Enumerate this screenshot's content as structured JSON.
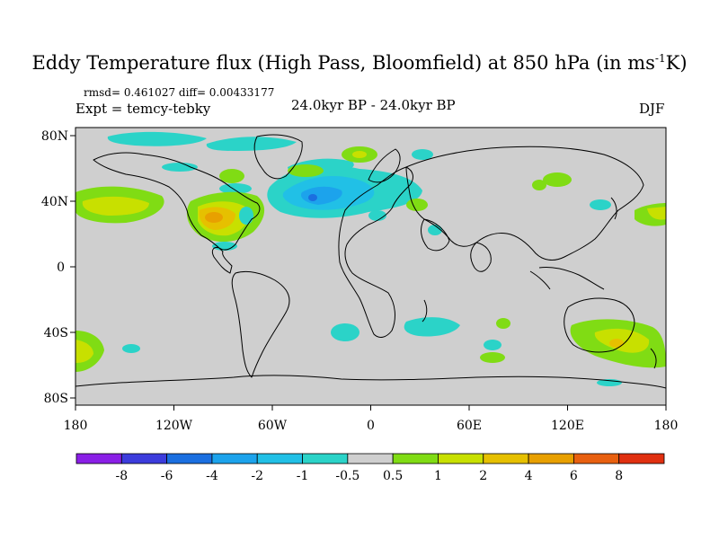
{
  "header": {
    "title": "Eddy Temperature flux (High Pass, Bloomfield) at 850 hPa (in ms",
    "title_sup": "-1",
    "title_tail": "K)",
    "stats": "rmsd= 0.461027 diff= 0.00433177",
    "expt": "Expt = temcy-tebky",
    "period": "24.0kyr BP - 24.0kyr BP",
    "season": "DJF"
  },
  "axes": {
    "lon_ticks": [
      "180",
      "120W",
      "60W",
      "0",
      "60E",
      "120E",
      "180"
    ],
    "lat_ticks": [
      "80N",
      "40N",
      "0",
      "40S",
      "80S"
    ]
  },
  "colorbar": {
    "labels": [
      "-8",
      "-6",
      "-4",
      "-2",
      "-1",
      "-0.5",
      "0.5",
      "1",
      "2",
      "4",
      "6",
      "8"
    ],
    "colors": [
      "#8a1fe6",
      "#3c3cdc",
      "#1b6fe0",
      "#1ca3ec",
      "#21c0e6",
      "#2bd3c8",
      "#cfcfcf",
      "#80dc14",
      "#c8e000",
      "#e6c000",
      "#e8a000",
      "#e86010",
      "#e03010"
    ]
  },
  "palette": {
    "ocean_background": "#cfcfcf",
    "coastline": "#000000"
  }
}
